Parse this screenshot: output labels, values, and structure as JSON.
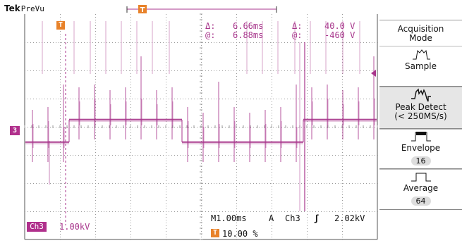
{
  "header": {
    "brand": "Tek",
    "mode": "PreVu"
  },
  "measurements": {
    "delta_symbol": "Δ:",
    "at_symbol": "@:",
    "time_delta": "6.66ms",
    "time_at": "6.88ms",
    "volt_delta": "40.0 V",
    "volt_at": "-460 V"
  },
  "trigger_marker": "T",
  "channel_marker": "3",
  "bottom": {
    "channel_box": "Ch3",
    "channel_scale": "1.00kV",
    "timebase": "M1.00ms",
    "trigger_label": "A",
    "trigger_source": "Ch3",
    "trigger_slope": "ʃ",
    "trigger_level": "2.02kV",
    "trigger_position": "10.00 %"
  },
  "menu": {
    "title_line1": "Acquisition",
    "title_line2": "Mode",
    "buttons": [
      {
        "label": "Sample",
        "value": ""
      },
      {
        "label": "Peak Detect",
        "value": "(< 250MS/s)"
      },
      {
        "label": "Envelope",
        "value": "16"
      },
      {
        "label": "Average",
        "value": "64"
      }
    ]
  },
  "colors": {
    "trace": "#a8368c",
    "graticule": "#888888",
    "trigger": "#e8822a"
  }
}
